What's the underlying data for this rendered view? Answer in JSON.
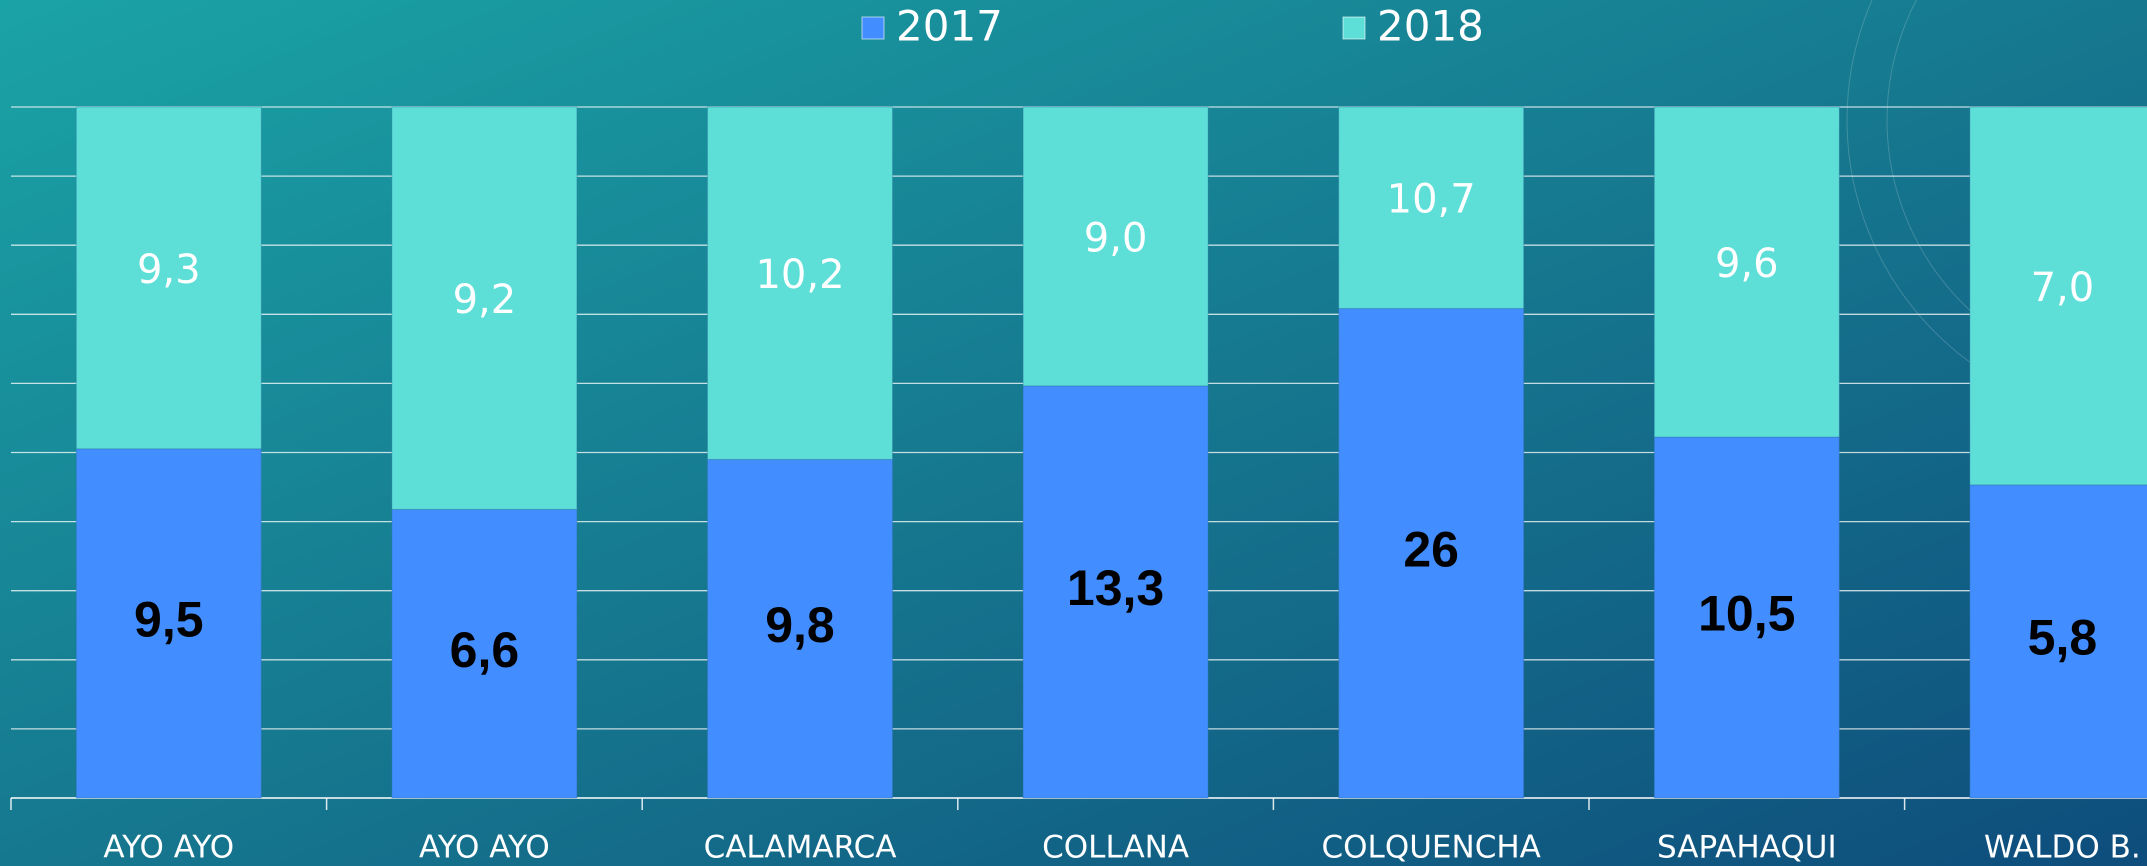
{
  "chart_data": {
    "type": "bar",
    "stacking": "percent",
    "categories": [
      "AYO AYO",
      "AYO AYO",
      "CALAMARCA",
      "COLLANA",
      "COLQUENCHA",
      "SAPAHAQUI",
      "WALDO B."
    ],
    "series": [
      {
        "name": "2017",
        "color": "#428dff",
        "label_color": "#000000",
        "values": [
          9.5,
          6.6,
          9.8,
          13.3,
          26,
          10.5,
          5.8
        ],
        "value_labels": [
          "9,5",
          "6,6",
          "9,8",
          "13,3",
          "26",
          "10,5",
          "5,8"
        ]
      },
      {
        "name": "2018",
        "color": "#5ddfd8",
        "label_color": "#ffffff",
        "values": [
          9.3,
          9.2,
          10.2,
          9.0,
          10.7,
          9.6,
          7.0
        ],
        "value_labels": [
          "9,3",
          "9,2",
          "10,2",
          "9,0",
          "10,7",
          "9,6",
          "7,0"
        ]
      }
    ],
    "ylim": [
      0,
      100
    ],
    "yticks": [
      0,
      10,
      20,
      30,
      40,
      50,
      60,
      70,
      80,
      90,
      100
    ],
    "show_ytick_labels": false,
    "grid": true,
    "legend": "top"
  }
}
